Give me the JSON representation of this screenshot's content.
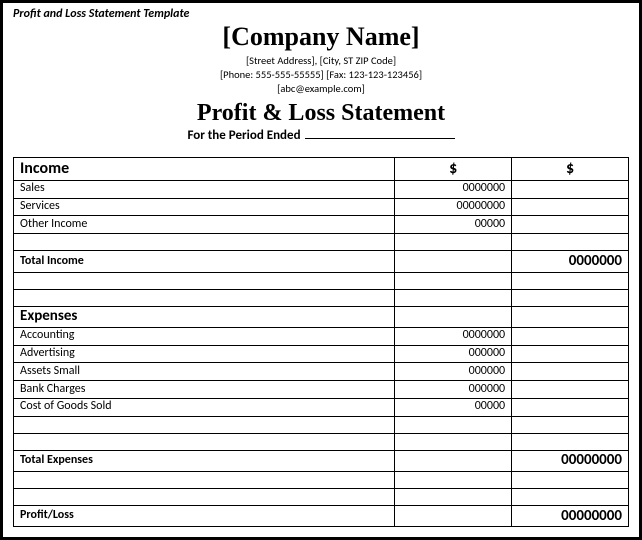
{
  "template_label": "Profit and Loss Statement Template",
  "company_name": "[Company Name]",
  "address_line": "[Street Address], [City, ST ZIP Code]",
  "contact_line": "[Phone: 555-555-55555] [Fax: 123-123-123456]",
  "email_line": "[abc@example.com]",
  "statement_title": "Profit & Loss Statement",
  "period_label": "For the Period Ended",
  "col2_header": "$",
  "col3_header": "$",
  "income": {
    "heading": "Income",
    "rows": [
      {
        "label": "Sales",
        "value": "0000000"
      },
      {
        "label": "Services",
        "value": "00000000"
      },
      {
        "label": "Other Income",
        "value": "00000"
      }
    ],
    "total_label": "Total Income",
    "total_value": "0000000"
  },
  "expenses": {
    "heading": "Expenses",
    "rows": [
      {
        "label": "Accounting",
        "value": "0000000"
      },
      {
        "label": "Advertising",
        "value": "000000"
      },
      {
        "label": "Assets Small",
        "value": "000000"
      },
      {
        "label": "Bank Charges",
        "value": "000000"
      },
      {
        "label": "Cost of Goods Sold",
        "value": "00000"
      }
    ],
    "total_label": "Total Expenses",
    "total_value": "00000000"
  },
  "profitloss": {
    "label": "Profit/Loss",
    "value": "00000000"
  }
}
